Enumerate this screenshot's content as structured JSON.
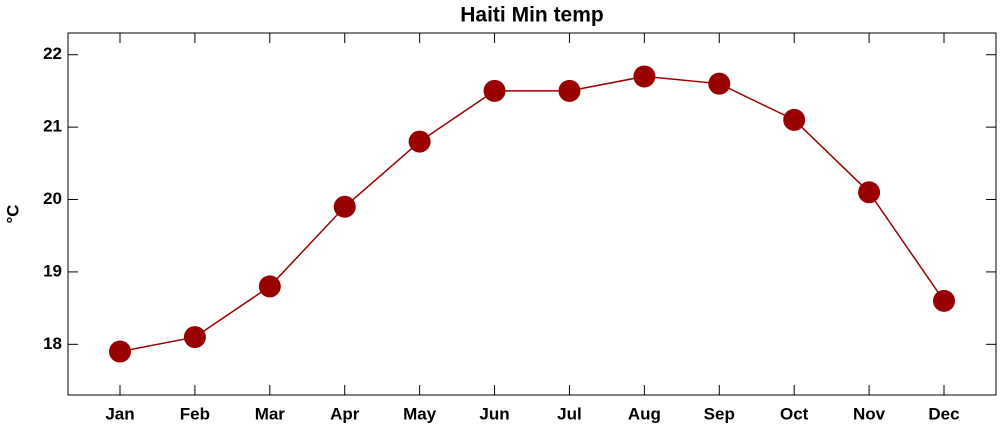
{
  "chart_data": {
    "type": "line",
    "title": "Haiti Min temp",
    "y_label": "°C",
    "categories": [
      "Jan",
      "Feb",
      "Mar",
      "Apr",
      "May",
      "Jun",
      "Jul",
      "Aug",
      "Sep",
      "Oct",
      "Nov",
      "Dec"
    ],
    "values": [
      17.9,
      18.1,
      18.8,
      19.9,
      20.8,
      21.5,
      21.5,
      21.7,
      21.6,
      21.1,
      20.1,
      18.6
    ],
    "color": "#990000",
    "ylim": [
      17.3,
      22.3
    ],
    "yticks": [
      18,
      19,
      20,
      21,
      22
    ]
  }
}
